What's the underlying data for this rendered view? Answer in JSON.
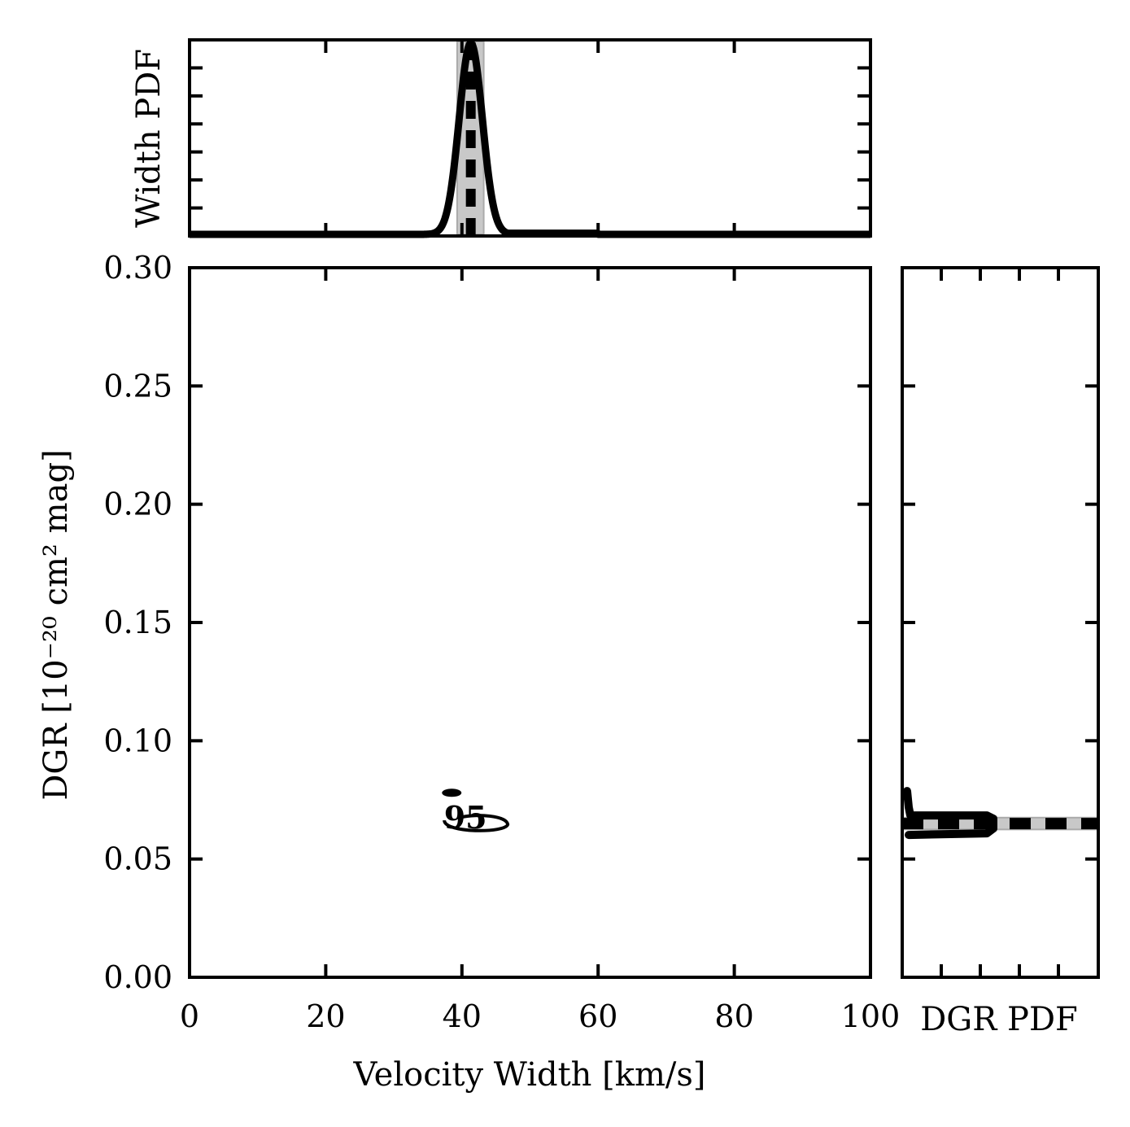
{
  "chart_data": [
    {
      "panel": "main",
      "type": "contour",
      "xlabel": "Velocity Width [km/s]",
      "ylabel": "DGR [10⁻²⁰ cm² mag]",
      "xlim": [
        0,
        100
      ],
      "ylim": [
        0.0,
        0.3
      ],
      "xticks": [
        0,
        20,
        40,
        60,
        80,
        100
      ],
      "xtick_labels": [
        "0",
        "20",
        "40",
        "60",
        "80",
        "100"
      ],
      "yticks": [
        0.0,
        0.05,
        0.1,
        0.15,
        0.2,
        0.25,
        0.3
      ],
      "ytick_labels": [
        "0.00",
        "0.05",
        "0.10",
        "0.15",
        "0.20",
        "0.25",
        "0.30"
      ],
      "grid": false,
      "contours": [
        {
          "level_label": "95",
          "center_x": 41.0,
          "center_y": 0.065
        }
      ],
      "isolated_blob": {
        "x": 38.5,
        "y": 0.078
      }
    },
    {
      "panel": "top",
      "type": "line",
      "ylabel": "Width PDF",
      "xlim": [
        0,
        100
      ],
      "peak_x": 41.3,
      "sigma": 1.7,
      "tail_end_x": 60,
      "credible_interval": [
        39.3,
        43.2
      ]
    },
    {
      "panel": "right",
      "type": "line",
      "xlabel": "DGR PDF",
      "ylim": [
        0.0,
        0.3
      ],
      "peak_y": 0.065,
      "credible_interval": [
        0.0625,
        0.0675
      ]
    }
  ]
}
